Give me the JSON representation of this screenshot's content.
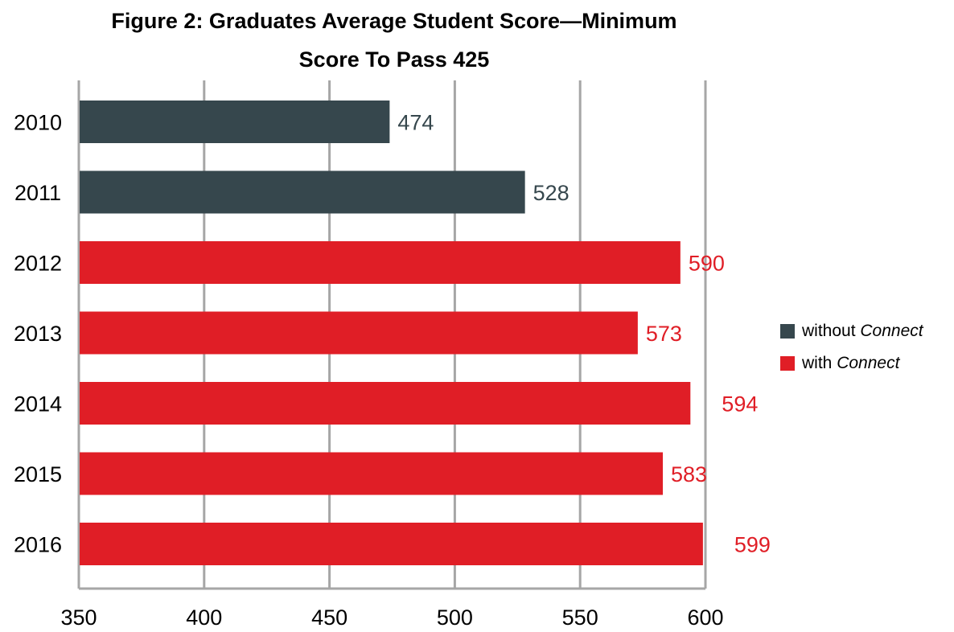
{
  "chart_data": {
    "type": "bar",
    "orientation": "horizontal",
    "title": [
      "Figure 2: Graduates Average Student Score—Minimum",
      "Score To Pass 425"
    ],
    "categories": [
      "2010",
      "2011",
      "2012",
      "2013",
      "2014",
      "2015",
      "2016"
    ],
    "values": [
      474,
      528,
      590,
      573,
      594,
      583,
      599
    ],
    "series_index": [
      0,
      0,
      1,
      1,
      1,
      1,
      1
    ],
    "series": [
      {
        "prefix": "without ",
        "emphasis": "Connect",
        "color": "#36474d"
      },
      {
        "prefix": "with ",
        "emphasis": "Connect",
        "color": "#e01e26"
      }
    ],
    "xlim": [
      350,
      600
    ],
    "xticks": [
      350,
      400,
      450,
      500,
      550,
      600
    ],
    "grid": "vertical",
    "legend": "right"
  }
}
